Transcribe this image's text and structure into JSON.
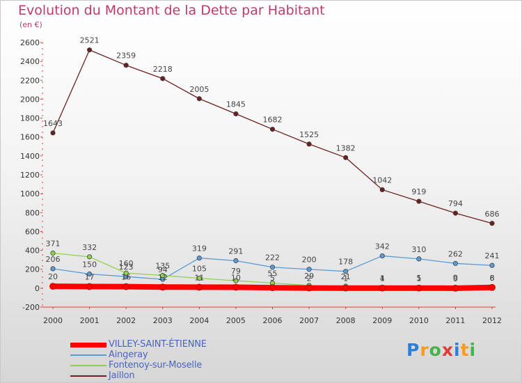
{
  "chart_data": {
    "type": "line",
    "title": "Evolution du Montant de la Dette par Habitant",
    "subtitle": "(en €)",
    "x": [
      "2000",
      "2001",
      "2002",
      "2003",
      "2004",
      "2005",
      "2006",
      "2007",
      "2008",
      "2009",
      "2010",
      "2011",
      "2012"
    ],
    "ylim": [
      -200,
      2600
    ],
    "yticks": [
      "-200",
      "0",
      "200",
      "400",
      "600",
      "800",
      "1000",
      "1200",
      "1400",
      "1600",
      "1800",
      "2000",
      "2200",
      "2400",
      "2600"
    ],
    "grid": false,
    "legend_position": "bottom-left",
    "series": [
      {
        "name": "VILLEY-SAINT-ÉTIENNE",
        "color": "#ff0000",
        "values": [
          20,
          17,
          16,
          12,
          11,
          10,
          5,
          2,
          1,
          1,
          1,
          0,
          8
        ],
        "labels": [
          "20",
          "17",
          "16",
          "12",
          "11",
          "10",
          "5",
          "2",
          "1",
          "1",
          "1",
          "0",
          "8"
        ]
      },
      {
        "name": "Aingeray",
        "color": "#5b9bd5",
        "values": [
          206,
          150,
          123,
          94,
          319,
          291,
          222,
          200,
          178,
          342,
          310,
          262,
          241
        ],
        "labels": [
          "206",
          "150",
          "123",
          "94",
          "319",
          "291",
          "222",
          "200",
          "178",
          "342",
          "310",
          "262",
          "241"
        ]
      },
      {
        "name": "Fontenoy-sur-Moselle",
        "color": "#8fd14f",
        "values": [
          371,
          332,
          160,
          135,
          105,
          79,
          55,
          29,
          21,
          4,
          5,
          9,
          6
        ],
        "labels": [
          "371",
          "332",
          "160",
          "135",
          "105",
          "79",
          "55",
          "29",
          "21",
          "4",
          "5",
          "9",
          "6"
        ]
      },
      {
        "name": "Jaillon",
        "color": "#6b1f1f",
        "values": [
          1643,
          2521,
          2359,
          2218,
          2005,
          1845,
          1682,
          1525,
          1382,
          1042,
          919,
          794,
          686
        ],
        "labels": [
          "1643",
          "2521",
          "2359",
          "2218",
          "2005",
          "1845",
          "1682",
          "1525",
          "1382",
          "1042",
          "919",
          "794",
          "686"
        ]
      }
    ]
  },
  "logo": {
    "letters": [
      "P",
      "r",
      "o",
      "x",
      "i",
      "t",
      "i"
    ],
    "colors": [
      "#2b7fd8",
      "#f59b1e",
      "#45b34a",
      "#e23a3a",
      "#2b7fd8",
      "#f59b1e",
      "#45b34a"
    ]
  }
}
